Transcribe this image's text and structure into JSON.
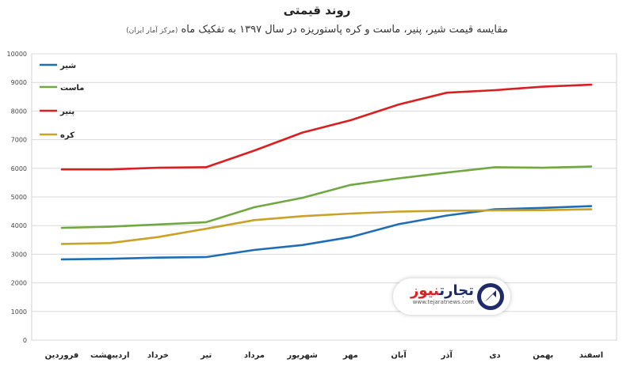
{
  "title": "روند قیمتی",
  "subtitle": "مقایسه قیمت شیر، پنیر، ماست و کره پاستوریزه در سال ۱۳۹۷ به تفکیک ماه",
  "subtitle_note": "(مرکز آمار ایران)",
  "watermark": {
    "name_part1": "تجارت",
    "name_part2": "نیوز",
    "url": "www.tejaratnews.com"
  },
  "chart_data": {
    "type": "line",
    "categories": [
      "فروردین",
      "اردیبهشت",
      "خرداد",
      "تیر",
      "مرداد",
      "شهریور",
      "مهر",
      "آبان",
      "آذر",
      "دی",
      "بهمن",
      "اسفند"
    ],
    "ylim": [
      0,
      10000
    ],
    "yticks": [
      0,
      1000,
      2000,
      3000,
      4000,
      5000,
      6000,
      7000,
      8000,
      9000,
      10000
    ],
    "ytick_labels": [
      "0",
      "1000",
      "2000",
      "3000",
      "4000",
      "5000",
      "6000",
      "7000",
      "8000",
      "9000",
      "10000"
    ],
    "grid": true,
    "legend_position": "top-left",
    "series": [
      {
        "name": "شیر",
        "color": "#1f6eb5",
        "values": [
          2820,
          2840,
          2880,
          2900,
          3150,
          3320,
          3600,
          4050,
          4350,
          4570,
          4620,
          4680
        ]
      },
      {
        "name": "ماست",
        "color": "#70a842",
        "values": [
          3920,
          3960,
          4040,
          4120,
          4640,
          4970,
          5420,
          5650,
          5850,
          6040,
          6020,
          6060
        ]
      },
      {
        "name": "پنیر",
        "color": "#d91f1f",
        "values": [
          5960,
          5960,
          6020,
          6040,
          6620,
          7250,
          7680,
          8230,
          8640,
          8730,
          8850,
          8920
        ]
      },
      {
        "name": "کره",
        "color": "#c9a227",
        "values": [
          3360,
          3390,
          3600,
          3890,
          4190,
          4330,
          4420,
          4490,
          4520,
          4530,
          4540,
          4570
        ]
      }
    ]
  }
}
